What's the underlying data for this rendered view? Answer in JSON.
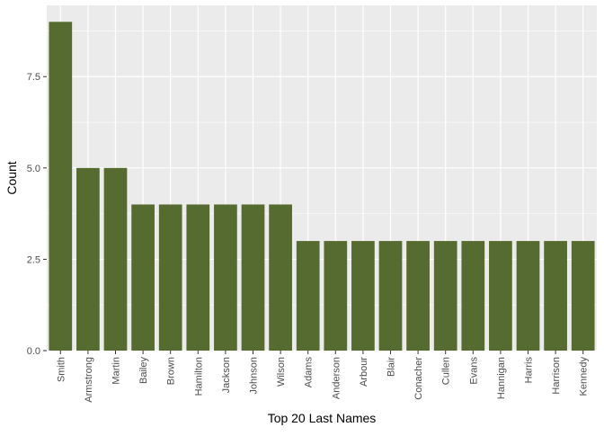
{
  "chart_data": {
    "type": "bar",
    "title": "",
    "xlabel": "Top 20 Last Names",
    "ylabel": "Count",
    "categories": [
      "Smith",
      "Armstrong",
      "Martin",
      "Bailey",
      "Brown",
      "Hamilton",
      "Jackson",
      "Johnson",
      "Wilson",
      "Adams",
      "Anderson",
      "Arbour",
      "Blair",
      "Conacher",
      "Cullen",
      "Evans",
      "Hannigan",
      "Harris",
      "Harrison",
      "Kennedy"
    ],
    "values": [
      9,
      5,
      5,
      4,
      4,
      4,
      4,
      4,
      4,
      3,
      3,
      3,
      3,
      3,
      3,
      3,
      3,
      3,
      3,
      3
    ],
    "ylim": [
      0,
      9.45
    ],
    "y_ticks": [
      0,
      2.5,
      5,
      7.5
    ],
    "y_tick_labels": [
      "0.0",
      "2.5",
      "5.0",
      "7.5"
    ],
    "grid": true,
    "legend": "none"
  },
  "colors": {
    "bar_fill": "#556b2f",
    "panel_background": "#ebebeb",
    "grid_major": "#ffffff",
    "tick_text": "#4d4d4d",
    "axis_title": "#000000"
  }
}
